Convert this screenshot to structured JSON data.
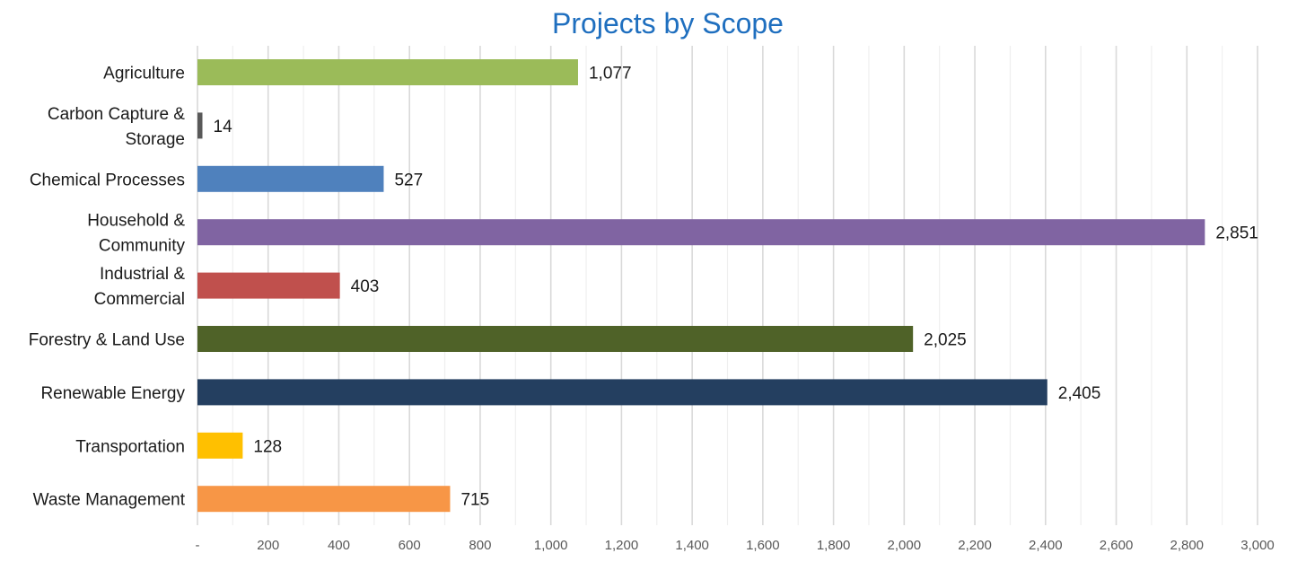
{
  "chart_data": {
    "type": "bar",
    "orientation": "horizontal",
    "title": "Projects by Scope",
    "xlabel": "",
    "ylabel": "",
    "xlim": [
      0,
      3000
    ],
    "x_ticks": [
      0,
      200,
      400,
      600,
      800,
      1000,
      1200,
      1400,
      1600,
      1800,
      2000,
      2200,
      2400,
      2600,
      2800,
      3000
    ],
    "x_tick_labels": [
      "-",
      "200",
      "400",
      "600",
      "800",
      "1,000",
      "1,200",
      "1,400",
      "1,600",
      "1,800",
      "2,000",
      "2,200",
      "2,400",
      "2,600",
      "2,800",
      "3,000"
    ],
    "minor_grid_step": 100,
    "grid": true,
    "legend": "none",
    "categories": [
      {
        "lines": [
          "Agriculture"
        ],
        "name": "Agriculture"
      },
      {
        "lines": [
          "Carbon Capture &",
          "Storage"
        ],
        "name": "Carbon Capture & Storage"
      },
      {
        "lines": [
          "Chemical Processes"
        ],
        "name": "Chemical Processes"
      },
      {
        "lines": [
          "Household &",
          "Community"
        ],
        "name": "Household & Community"
      },
      {
        "lines": [
          "Industrial &",
          "Commercial"
        ],
        "name": "Industrial & Commercial"
      },
      {
        "lines": [
          "Forestry & Land Use"
        ],
        "name": "Forestry & Land Use"
      },
      {
        "lines": [
          "Renewable Energy"
        ],
        "name": "Renewable Energy"
      },
      {
        "lines": [
          "Transportation"
        ],
        "name": "Transportation"
      },
      {
        "lines": [
          "Waste Management"
        ],
        "name": "Waste Management"
      }
    ],
    "values": [
      1077,
      14,
      527,
      2851,
      403,
      2025,
      2405,
      128,
      715
    ],
    "value_labels": [
      "1,077",
      "14",
      "527",
      "2,851",
      "403",
      "2,025",
      "2,405",
      "128",
      "715"
    ],
    "colors": [
      "#9bbb59",
      "#595959",
      "#4f81bd",
      "#8064a2",
      "#c0504d",
      "#4f6228",
      "#243f60",
      "#ffc000",
      "#f79646"
    ]
  },
  "colors": {
    "title": "#1f6fbf",
    "major_grid": "#d9d9d9",
    "minor_grid": "#efefef"
  }
}
